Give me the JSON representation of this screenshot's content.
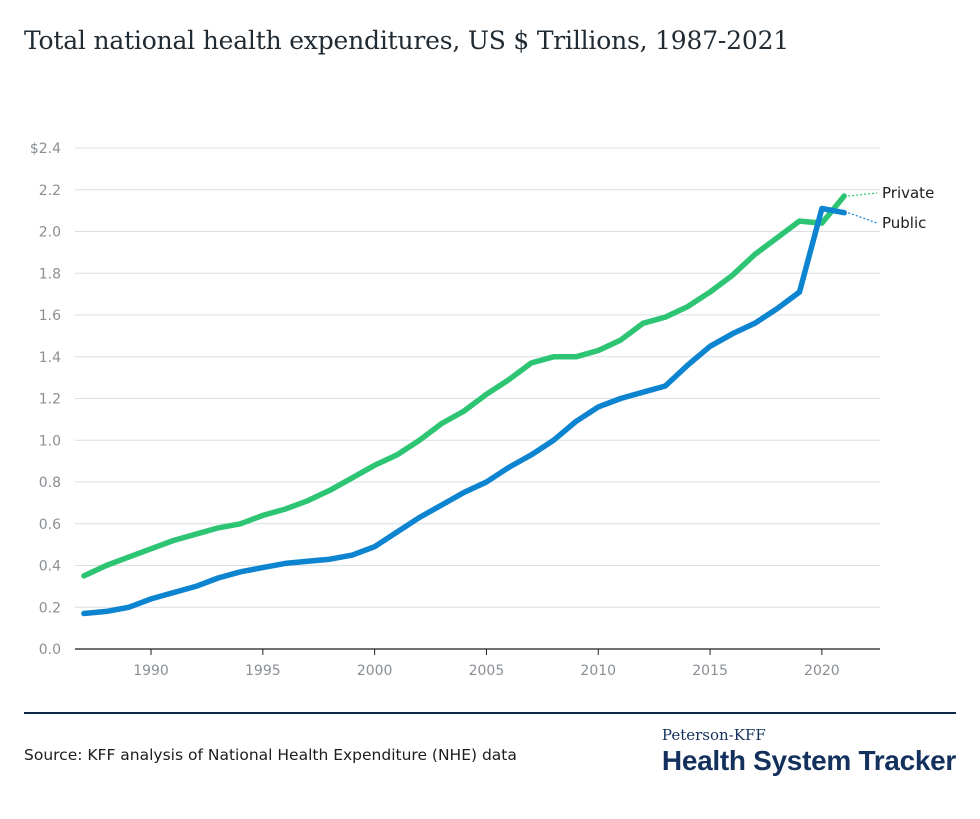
{
  "title": "Total national health expenditures, US $ Trillions, 1987-2021",
  "source": "Source: KFF analysis of National Health Expenditure (NHE) data",
  "brand": {
    "top": "Peterson-KFF",
    "name": "Health System Tracker"
  },
  "colors": {
    "private": "#2dc574",
    "public": "#0d84d0",
    "navy": "#13315c"
  },
  "chart_data": {
    "type": "line",
    "title": "Total national health expenditures, US $ Trillions, 1987-2021",
    "xlabel": "",
    "ylabel": "",
    "xlim": [
      1986.6,
      2022.6
    ],
    "ylim": [
      0,
      2.4
    ],
    "yticks": [
      0,
      0.2,
      0.4,
      0.6,
      0.8,
      1.0,
      1.2,
      1.4,
      1.6,
      1.8,
      2.0,
      2.2,
      2.4
    ],
    "ytick_labels": [
      "0.0",
      "0.2",
      "0.4",
      "0.6",
      "0.8",
      "1.0",
      "1.2",
      "1.4",
      "1.6",
      "1.8",
      "2.0",
      "2.2",
      "$2.4"
    ],
    "xticks": [
      1990,
      1995,
      2000,
      2005,
      2010,
      2015,
      2020
    ],
    "xtick_labels": [
      "1990",
      "1995",
      "2000",
      "2005",
      "2010",
      "2015",
      "2020"
    ],
    "grid": true,
    "legend": "inline labels at line ends",
    "x": [
      1987,
      1988,
      1989,
      1990,
      1991,
      1992,
      1993,
      1994,
      1995,
      1996,
      1997,
      1998,
      1999,
      2000,
      2001,
      2002,
      2003,
      2004,
      2005,
      2006,
      2007,
      2008,
      2009,
      2010,
      2011,
      2012,
      2013,
      2014,
      2015,
      2016,
      2017,
      2018,
      2019,
      2020,
      2021
    ],
    "series": [
      {
        "name": "Private",
        "color": "#2dc574",
        "values": [
          0.35,
          0.4,
          0.44,
          0.48,
          0.52,
          0.55,
          0.58,
          0.6,
          0.64,
          0.67,
          0.71,
          0.76,
          0.82,
          0.88,
          0.93,
          1.0,
          1.08,
          1.14,
          1.22,
          1.29,
          1.37,
          1.4,
          1.4,
          1.43,
          1.48,
          1.56,
          1.59,
          1.64,
          1.71,
          1.79,
          1.89,
          1.97,
          2.05,
          2.04,
          2.17
        ]
      },
      {
        "name": "Public",
        "color": "#0d84d0",
        "values": [
          0.17,
          0.18,
          0.2,
          0.24,
          0.27,
          0.3,
          0.34,
          0.37,
          0.39,
          0.41,
          0.42,
          0.43,
          0.45,
          0.49,
          0.56,
          0.63,
          0.69,
          0.75,
          0.8,
          0.87,
          0.93,
          1.0,
          1.09,
          1.16,
          1.2,
          1.23,
          1.26,
          1.36,
          1.45,
          1.51,
          1.56,
          1.63,
          1.71,
          2.11,
          2.09
        ]
      }
    ]
  }
}
